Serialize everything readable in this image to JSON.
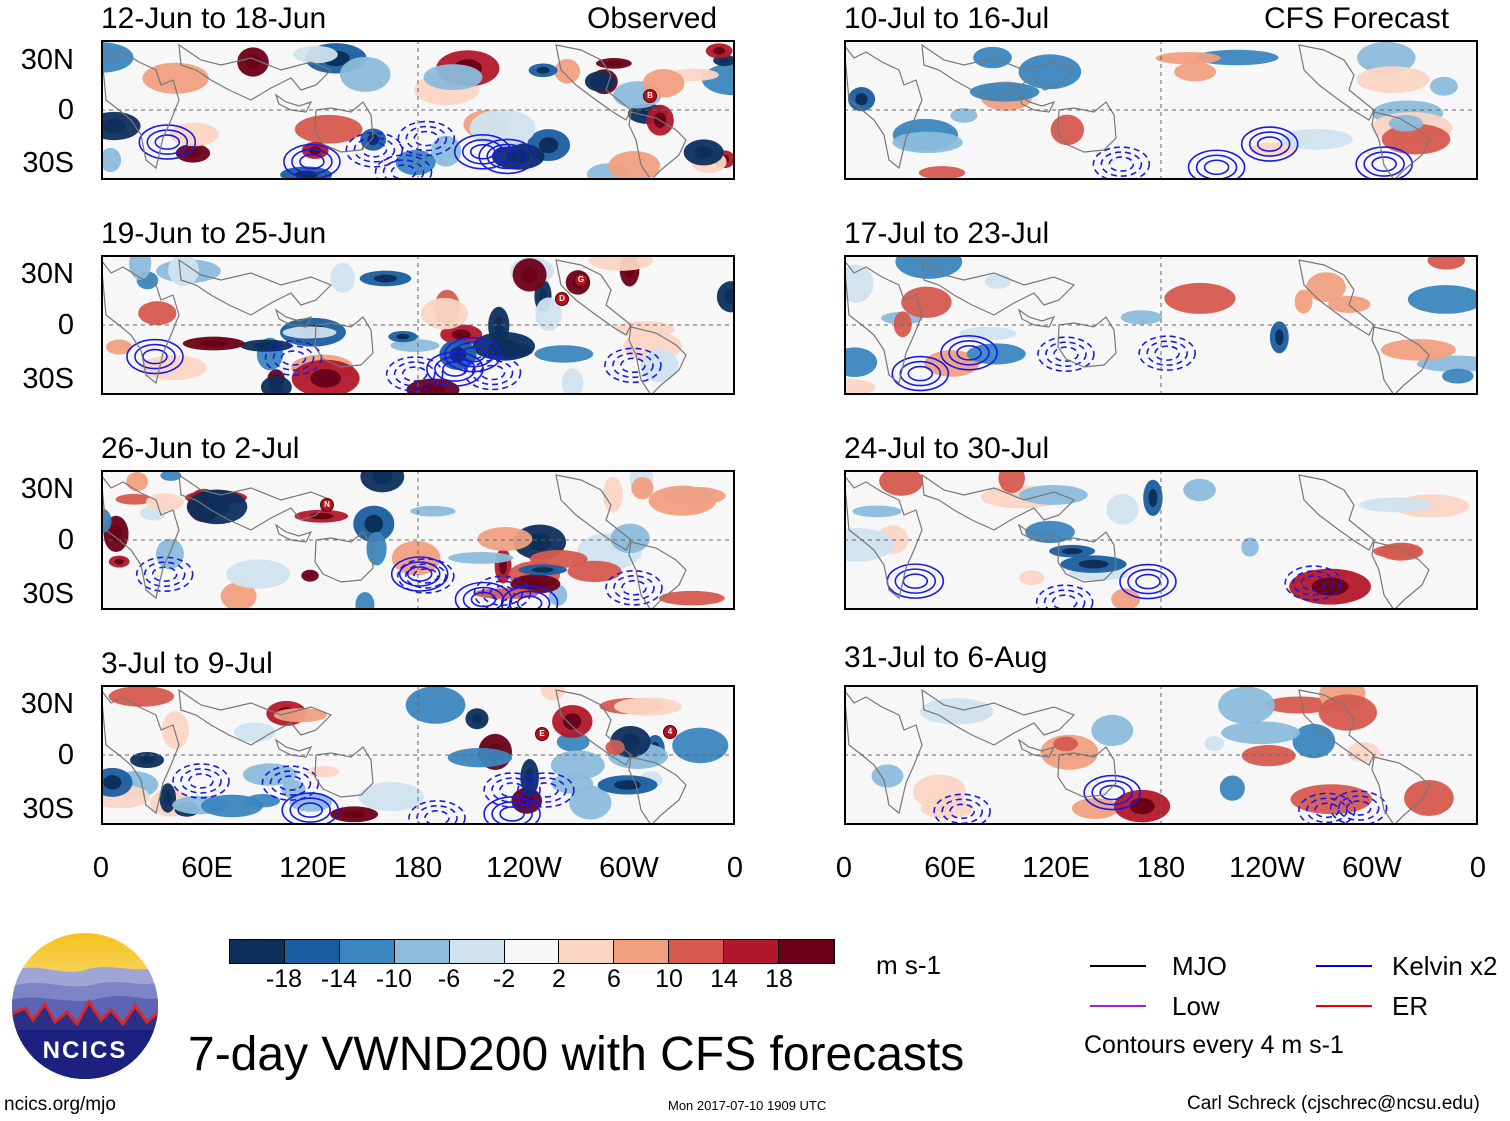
{
  "figure_title": "7-day VWND200 with CFS forecasts",
  "logo": {
    "text": "NCICS"
  },
  "url_text": "ncics.org/mjo",
  "timestamp": "Mon 2017-07-10 1909 UTC",
  "credit": "Carl Schreck (cjschrec@ncsu.edu)",
  "observed_label": "Observed",
  "forecast_label": "CFS Forecast",
  "y_ticks": [
    "30N",
    "0",
    "30S"
  ],
  "x_ticks": [
    "0",
    "60E",
    "120E",
    "180",
    "120W",
    "60W",
    "0"
  ],
  "panels_observed": [
    {
      "title": "12-Jun to 18-Jun",
      "storms": [
        "B"
      ]
    },
    {
      "title": "19-Jun to 25-Jun",
      "storms": [
        "D",
        "G"
      ]
    },
    {
      "title": "26-Jun to 2-Jul",
      "storms": [
        "N"
      ]
    },
    {
      "title": "3-Jul to 9-Jul",
      "storms": [
        "E",
        "4"
      ]
    }
  ],
  "panels_forecast": [
    {
      "title": "10-Jul to 16-Jul"
    },
    {
      "title": "17-Jul to 23-Jul"
    },
    {
      "title": "24-Jul to 30-Jul"
    },
    {
      "title": "31-Jul to 6-Aug"
    }
  ],
  "colorbar": {
    "unit": "m s-1",
    "ticks": [
      "-18",
      "-14",
      "-10",
      "-6",
      "-2",
      "2",
      "6",
      "10",
      "14",
      "18"
    ],
    "colors": [
      "#0c2f5c",
      "#1b5e9f",
      "#3a86bf",
      "#8bbcdb",
      "#cfe3ef",
      "#f7f7f7",
      "#fad5c3",
      "#f0a07f",
      "#d65a4e",
      "#b2182b",
      "#6b0018"
    ]
  },
  "legend": {
    "items": [
      {
        "label": "MJO",
        "color": "#000000"
      },
      {
        "label": "Kelvin x2",
        "color": "#0000ee"
      },
      {
        "label": "Low",
        "color": "#a020f0"
      },
      {
        "label": "ER",
        "color": "#ee0000"
      }
    ],
    "note": "Contours every 4 m s-1"
  },
  "map_colors": {
    "blue_contour": "#1a1ae6",
    "coast": "#777777",
    "equator": "#666666"
  }
}
